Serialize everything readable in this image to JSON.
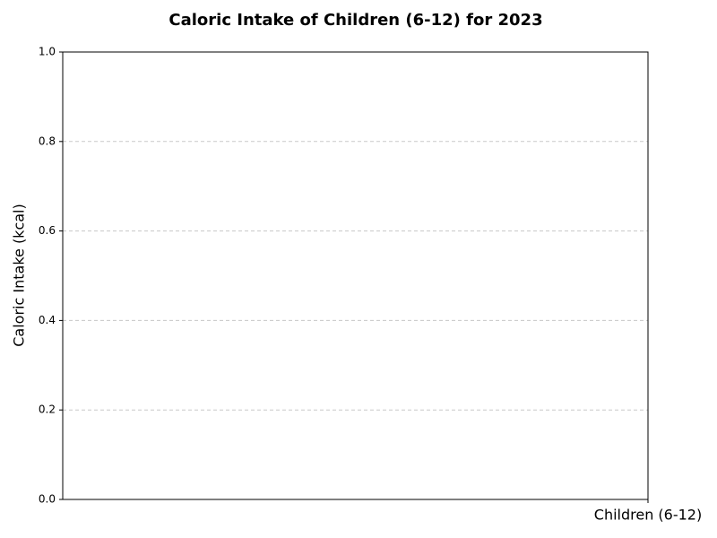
{
  "chart_data": {
    "type": "bar",
    "title": "Caloric Intake of Children (6-12) for 2023",
    "ylabel": "Caloric Intake (kcal)",
    "categories": [
      "Children (6-12)"
    ],
    "ylim": [
      0,
      1
    ],
    "yticks": [
      {
        "value": 0,
        "label": "0.0"
      },
      0.2,
      0.4,
      0.6,
      0.8,
      {
        "value": 1,
        "label": "1.0"
      }
    ],
    "grid": true
  }
}
